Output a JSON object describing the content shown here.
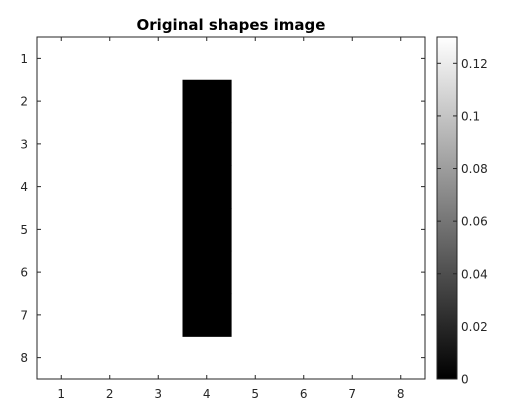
{
  "chart_data": {
    "type": "heatmap",
    "title": "Original shapes image",
    "x_categories": [
      1,
      2,
      3,
      4,
      5,
      6,
      7,
      8
    ],
    "y_categories": [
      1,
      2,
      3,
      4,
      5,
      6,
      7,
      8
    ],
    "x_tick_labels": [
      "1",
      "2",
      "3",
      "4",
      "5",
      "6",
      "7",
      "8"
    ],
    "y_tick_labels": [
      "1",
      "2",
      "3",
      "4",
      "5",
      "6",
      "7",
      "8"
    ],
    "xlim": [
      0.5,
      8.5
    ],
    "ylim": [
      0.5,
      8.5
    ],
    "y_direction": "reverse",
    "grid": false,
    "colormap": "gray",
    "background_value": 0.13,
    "cells": [
      {
        "x": 4,
        "y": 2,
        "value": 0
      },
      {
        "x": 4,
        "y": 3,
        "value": 0
      },
      {
        "x": 4,
        "y": 4,
        "value": 0
      },
      {
        "x": 4,
        "y": 5,
        "value": 0
      },
      {
        "x": 4,
        "y": 6,
        "value": 0
      },
      {
        "x": 4,
        "y": 7,
        "value": 0
      }
    ],
    "colorbar": {
      "range": [
        0,
        0.13
      ],
      "ticks": [
        0,
        0.02,
        0.04,
        0.06,
        0.08,
        0.1,
        0.12
      ],
      "tick_labels": [
        "0",
        "0.02",
        "0.04",
        "0.06",
        "0.08",
        "0.1",
        "0.12"
      ],
      "placement": "right"
    }
  }
}
